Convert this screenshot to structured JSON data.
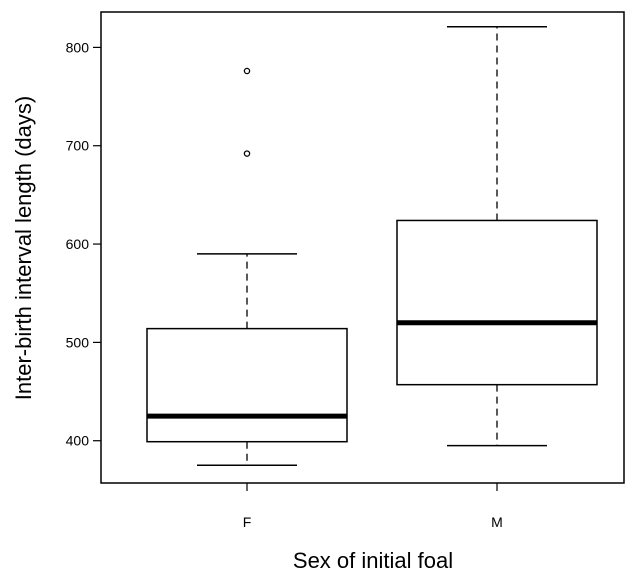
{
  "chart_data": {
    "type": "boxplot",
    "title": "",
    "xlabel": "Sex of initial foal",
    "ylabel": "Inter-birth interval length (days)",
    "ylim": [
      357,
      836
    ],
    "yticks": [
      400,
      500,
      600,
      700,
      800
    ],
    "grid": false,
    "categories": [
      "F",
      "M"
    ],
    "boxes": [
      {
        "category": "F",
        "whisker_low": 375,
        "q1": 399,
        "median": 425,
        "q3": 514,
        "whisker_high": 590,
        "outliers": [
          692,
          776
        ]
      },
      {
        "category": "M",
        "whisker_low": 395,
        "q1": 457,
        "median": 520,
        "q3": 624,
        "whisker_high": 821,
        "outliers": []
      }
    ]
  }
}
